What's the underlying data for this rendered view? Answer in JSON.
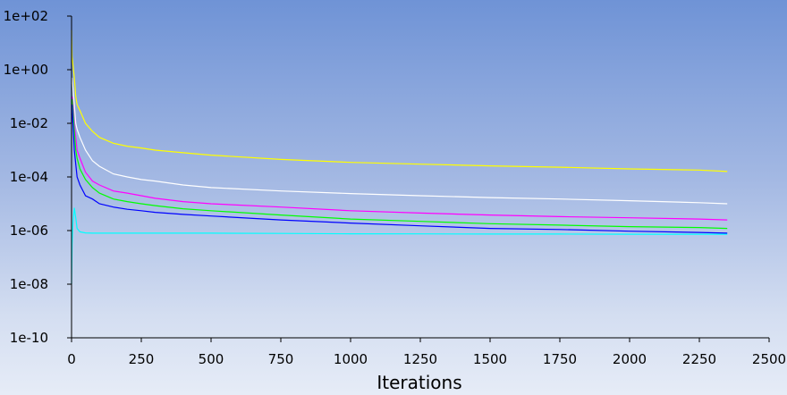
{
  "chart_data": {
    "type": "line",
    "title": "",
    "xlabel": "Iterations",
    "ylabel": "",
    "xlim": [
      0,
      2500
    ],
    "ylim": [
      1e-10,
      100
    ],
    "yscale": "log",
    "grid": false,
    "xticks": [
      0,
      250,
      500,
      750,
      1000,
      1250,
      1500,
      1750,
      2000,
      2250,
      2500
    ],
    "xtick_labels": [
      "0",
      "250",
      "500",
      "750",
      "1000",
      "1250",
      "1500",
      "1750",
      "2000",
      "2250",
      "2500"
    ],
    "yticks": [
      1e-10,
      1e-08,
      1e-06,
      0.0001,
      0.01,
      1,
      100
    ],
    "ytick_labels": [
      "1e-10",
      "1e-08",
      "1e-06",
      "1e-04",
      "1e-02",
      "1e+00",
      "1e+02"
    ],
    "series": [
      {
        "color": "#ffff00",
        "x": [
          0,
          2,
          5,
          10,
          15,
          20,
          30,
          50,
          75,
          100,
          150,
          200,
          250,
          300,
          400,
          500,
          750,
          1000,
          1250,
          1500,
          1750,
          2000,
          2250,
          2350
        ],
        "y": [
          30,
          3,
          1.5,
          0.5,
          0.1,
          0.05,
          0.03,
          0.01,
          0.005,
          0.003,
          0.0018,
          0.0014,
          0.0012,
          0.001,
          0.0008,
          0.00065,
          0.00045,
          0.00035,
          0.0003,
          0.00026,
          0.00023,
          0.0002,
          0.00018,
          0.00016
        ]
      },
      {
        "color": "#ffffff",
        "x": [
          0,
          2,
          5,
          10,
          15,
          20,
          30,
          50,
          75,
          100,
          150,
          200,
          250,
          300,
          400,
          500,
          750,
          1000,
          1250,
          1500,
          1750,
          2000,
          2250,
          2350
        ],
        "y": [
          0.3,
          0.5,
          0.2,
          0.05,
          0.01,
          0.006,
          0.003,
          0.001,
          0.0004,
          0.00025,
          0.00013,
          0.0001,
          8e-05,
          7e-05,
          5e-05,
          4e-05,
          3e-05,
          2.4e-05,
          2e-05,
          1.7e-05,
          1.5e-05,
          1.3e-05,
          1.1e-05,
          1e-05
        ]
      },
      {
        "color": "#ff00ff",
        "x": [
          0,
          2,
          5,
          10,
          15,
          20,
          30,
          50,
          75,
          100,
          150,
          200,
          250,
          300,
          400,
          500,
          750,
          1000,
          1250,
          1500,
          1750,
          2000,
          2250,
          2350
        ],
        "y": [
          0.05,
          0.1,
          0.05,
          0.01,
          0.003,
          0.001,
          0.0005,
          0.00015,
          7e-05,
          5e-05,
          3e-05,
          2.5e-05,
          2e-05,
          1.6e-05,
          1.2e-05,
          1e-05,
          7.5e-06,
          5.5e-06,
          4.5e-06,
          3.8e-06,
          3.3e-06,
          3e-06,
          2.7e-06,
          2.5e-06
        ]
      },
      {
        "color": "#00ff00",
        "x": [
          0,
          2,
          5,
          10,
          15,
          20,
          30,
          50,
          75,
          100,
          150,
          200,
          250,
          300,
          400,
          500,
          750,
          1000,
          1250,
          1500,
          1750,
          2000,
          2250,
          2350
        ],
        "y": [
          0.02,
          0.08,
          0.03,
          0.005,
          0.001,
          0.0005,
          0.0002,
          8e-05,
          4e-05,
          2.5e-05,
          1.5e-05,
          1.2e-05,
          1e-05,
          8.5e-06,
          6.5e-06,
          5.5e-06,
          3.8e-06,
          2.7e-06,
          2.2e-06,
          1.8e-06,
          1.6e-06,
          1.4e-06,
          1.3e-06,
          1.2e-06
        ]
      },
      {
        "color": "#0000ff",
        "x": [
          0,
          2,
          5,
          10,
          15,
          20,
          30,
          50,
          75,
          100,
          150,
          200,
          250,
          300,
          400,
          500,
          750,
          1000,
          1250,
          1500,
          1750,
          2000,
          2250,
          2350
        ],
        "y": [
          0.01,
          0.05,
          0.01,
          0.001,
          0.0003,
          0.0001,
          5e-05,
          2e-05,
          1.5e-05,
          1e-05,
          7.5e-06,
          6.2e-06,
          5.5e-06,
          4.8e-06,
          4e-06,
          3.5e-06,
          2.5e-06,
          1.9e-06,
          1.5e-06,
          1.2e-06,
          1.1e-06,
          9.5e-07,
          8.5e-07,
          8e-07
        ]
      },
      {
        "color": "#00ffff",
        "x": [
          0,
          2,
          5,
          10,
          15,
          20,
          30,
          50,
          75,
          100,
          150,
          200,
          250,
          300,
          400,
          500,
          750,
          1000,
          1250,
          1500,
          1750,
          2000,
          2250,
          2350
        ],
        "y": [
          1e-08,
          3e-07,
          2e-06,
          7e-06,
          3e-06,
          1.2e-06,
          9e-07,
          8.2e-07,
          8e-07,
          8e-07,
          8e-07,
          8e-07,
          8e-07,
          8e-07,
          8e-07,
          8e-07,
          7.8e-07,
          7.6e-07,
          7.5e-07,
          7.4e-07,
          7.4e-07,
          7.3e-07,
          7.3e-07,
          7.3e-07
        ]
      }
    ]
  }
}
